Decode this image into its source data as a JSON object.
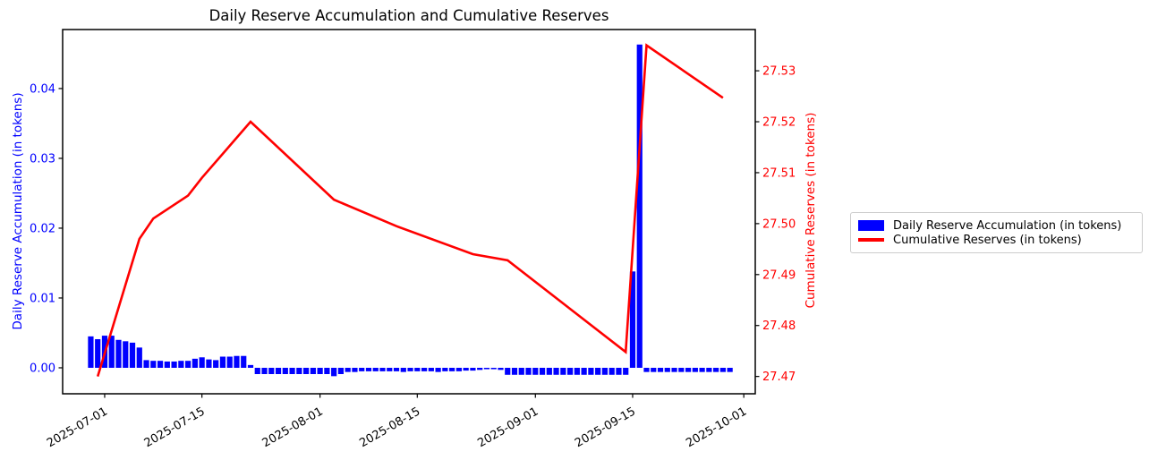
{
  "chart_data": {
    "type": "bar",
    "title": "Daily Reserve Accumulation and Cumulative Reserves",
    "grid": false,
    "legend_position": "outside-right",
    "x_axis": {
      "tick_labels": [
        "2025-07-01",
        "2025-07-15",
        "2025-08-01",
        "2025-08-15",
        "2025-09-01",
        "2025-09-15",
        "2025-10-01"
      ],
      "tick_days": [
        0,
        14,
        31,
        45,
        62,
        76,
        92
      ],
      "xlim_days": [
        -6.05,
        93.65
      ],
      "label_rotation_deg": -30
    },
    "left_axis": {
      "label": "Daily Reserve Accumulation (in tokens)",
      "color": "#0000ff",
      "tick_labels": [
        "0.00",
        "0.01",
        "0.02",
        "0.03",
        "0.04"
      ],
      "ticks": [
        0.0,
        0.01,
        0.02,
        0.03,
        0.04
      ],
      "ylim": [
        -0.00372,
        0.04845
      ]
    },
    "right_axis": {
      "label": "Cumulative Reserves (in tokens)",
      "color": "#ff0000",
      "tick_labels": [
        "27.47",
        "27.48",
        "27.49",
        "27.50",
        "27.51",
        "27.52",
        "27.53"
      ],
      "ticks": [
        27.47,
        27.48,
        27.49,
        27.5,
        27.51,
        27.52,
        27.53
      ],
      "ylim": [
        27.4666,
        27.5381
      ]
    },
    "bars": {
      "name": "Daily Reserve Accumulation (in tokens)",
      "color": "#0000ff",
      "start_date": "2025-06-29",
      "start_day": -2,
      "frequency": "daily",
      "values": [
        0.0045,
        0.0041,
        0.0046,
        0.0046,
        0.004,
        0.0038,
        0.0036,
        0.0029,
        0.0011,
        0.001,
        0.001,
        0.0009,
        0.0009,
        0.001,
        0.001,
        0.0013,
        0.0015,
        0.0012,
        0.0011,
        0.0016,
        0.0016,
        0.0017,
        0.0017,
        0.0004,
        -0.0009,
        -0.0009,
        -0.0009,
        -0.0009,
        -0.0009,
        -0.0009,
        -0.0009,
        -0.0009,
        -0.0009,
        -0.0009,
        -0.0009,
        -0.0012,
        -0.0009,
        -0.0006,
        -0.0006,
        -0.0005,
        -0.0005,
        -0.0005,
        -0.0005,
        -0.0005,
        -0.0005,
        -0.0006,
        -0.0005,
        -0.0005,
        -0.0005,
        -0.0005,
        -0.0006,
        -0.0005,
        -0.0005,
        -0.0005,
        -0.0004,
        -0.0004,
        -0.0003,
        -0.0002,
        -0.0002,
        -0.0003,
        -0.001,
        -0.001,
        -0.001,
        -0.001,
        -0.001,
        -0.001,
        -0.001,
        -0.001,
        -0.001,
        -0.001,
        -0.001,
        -0.001,
        -0.001,
        -0.001,
        -0.001,
        -0.001,
        -0.001,
        -0.001,
        0.0138,
        0.0463,
        -0.0006,
        -0.0006,
        -0.0006,
        -0.0006,
        -0.0006,
        -0.0006,
        -0.0006,
        -0.0006,
        -0.0006,
        -0.0006,
        -0.0006,
        -0.0006,
        -0.0006
      ]
    },
    "line": {
      "name": "Cumulative Reserves (in tokens)",
      "color": "#ff0000",
      "points": [
        {
          "date": "2025-06-30",
          "day": -1,
          "value": 27.47
        },
        {
          "date": "2025-07-06",
          "day": 5,
          "value": 27.497
        },
        {
          "date": "2025-07-08",
          "day": 7,
          "value": 27.501
        },
        {
          "date": "2025-07-13",
          "day": 12,
          "value": 27.5055
        },
        {
          "date": "2025-07-15",
          "day": 14,
          "value": 27.509
        },
        {
          "date": "2025-07-22",
          "day": 21,
          "value": 27.52
        },
        {
          "date": "2025-08-03",
          "day": 33,
          "value": 27.5047
        },
        {
          "date": "2025-08-12",
          "day": 42,
          "value": 27.4995
        },
        {
          "date": "2025-08-23",
          "day": 53,
          "value": 27.494
        },
        {
          "date": "2025-08-28",
          "day": 58,
          "value": 27.4928
        },
        {
          "date": "2025-09-14",
          "day": 75,
          "value": 27.4748
        },
        {
          "date": "2025-09-17",
          "day": 78,
          "value": 27.535
        },
        {
          "date": "2025-09-28",
          "day": 89,
          "value": 27.5247
        }
      ]
    },
    "legend": {
      "items": [
        {
          "swatch": "bar",
          "label": "Daily Reserve Accumulation (in tokens)"
        },
        {
          "swatch": "line",
          "label": "Cumulative Reserves (in tokens)"
        }
      ]
    }
  }
}
